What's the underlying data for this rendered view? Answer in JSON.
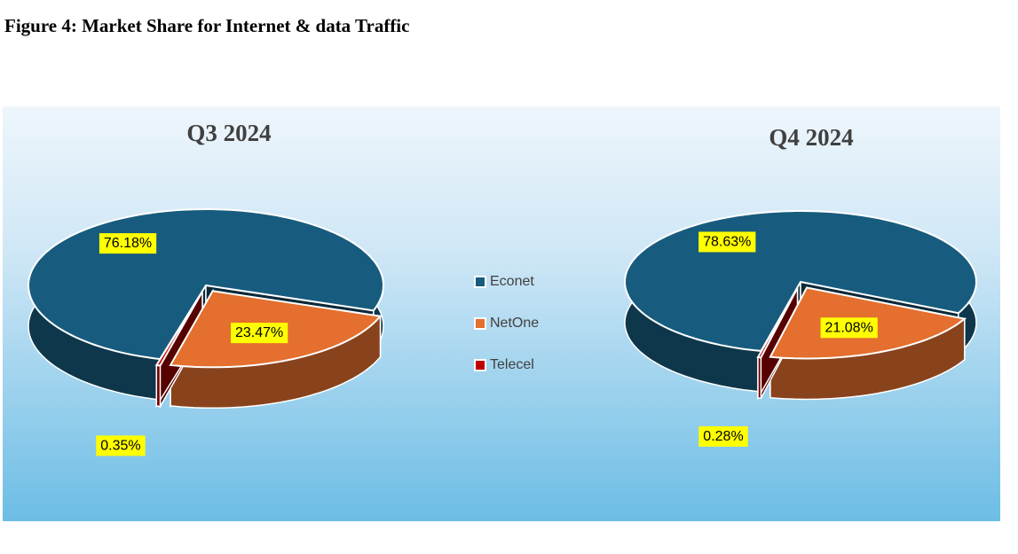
{
  "caption": "Figure 4: Market Share for Internet & data Traffic",
  "chart_data": [
    {
      "type": "pie",
      "title": "Q3 2024",
      "categories": [
        "Econet",
        "NetOne",
        "Telecel"
      ],
      "values": [
        76.18,
        23.47,
        0.35
      ],
      "value_labels": [
        "76.18%",
        "23.47%",
        "0.35%"
      ],
      "colors": [
        "#175c7e",
        "#e46f2e",
        "#c00000"
      ],
      "legend": "right"
    },
    {
      "type": "pie",
      "title": "Q4 2024",
      "categories": [
        "Econet",
        "NetOne",
        "Telecel"
      ],
      "values": [
        78.63,
        21.08,
        0.28
      ],
      "value_labels": [
        "78.63%",
        "21.08%",
        "0.28%"
      ],
      "colors": [
        "#175c7e",
        "#e46f2e",
        "#c00000"
      ]
    }
  ]
}
